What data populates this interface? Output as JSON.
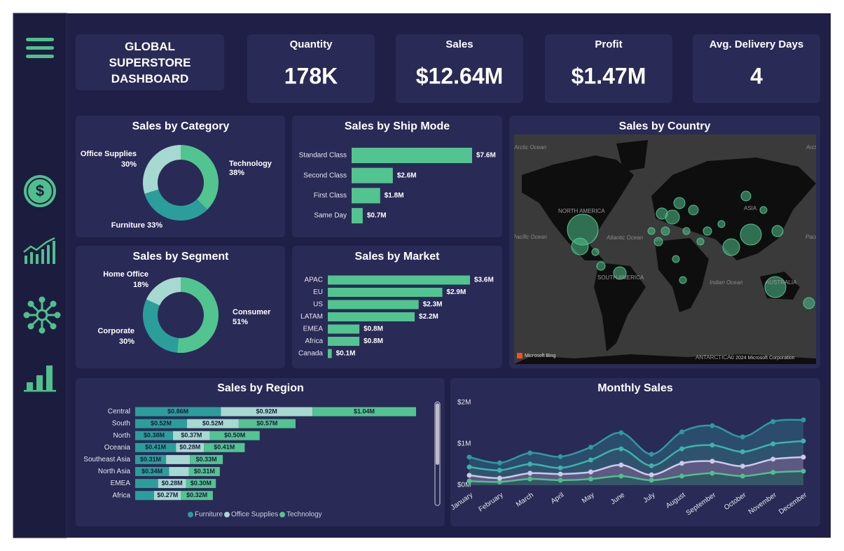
{
  "header": {
    "title": "GLOBAL SUPERSTORE DASHBOARD"
  },
  "kpis": [
    {
      "label": "Quantity",
      "value": "178K"
    },
    {
      "label": "Sales",
      "value": "$12.64M"
    },
    {
      "label": "Profit",
      "value": "$1.47M"
    },
    {
      "label": "Avg. Delivery Days",
      "value": 4
    }
  ],
  "chart_data": [
    {
      "type": "donut",
      "title": "Sales by Category",
      "categories": [
        "Technology",
        "Furniture",
        "Office Supplies"
      ],
      "values": [
        38,
        33,
        30
      ],
      "value_labels": [
        "38%",
        "33%",
        "30%"
      ],
      "colors": [
        "#52c48f",
        "#2b9e9b",
        "#a6d9cf"
      ]
    },
    {
      "type": "hbar",
      "title": "Sales by Ship Mode",
      "categories": [
        "Standard Class",
        "Second Class",
        "First Class",
        "Same Day"
      ],
      "values": [
        7.6,
        2.6,
        1.8,
        0.7
      ],
      "value_labels": [
        "$7.6M",
        "$2.6M",
        "$1.8M",
        "$0.7M"
      ],
      "color": "#52c48f"
    },
    {
      "type": "donut",
      "title": "Sales by Segment",
      "categories": [
        "Consumer",
        "Corporate",
        "Home Office"
      ],
      "values": [
        51,
        30,
        18
      ],
      "value_labels": [
        "51%",
        "30%",
        "18%"
      ],
      "colors": [
        "#52c48f",
        "#2b9e9b",
        "#a6d9cf"
      ]
    },
    {
      "type": "hbar",
      "title": "Sales by Market",
      "categories": [
        "APAC",
        "EU",
        "US",
        "LATAM",
        "EMEA",
        "Africa",
        "Canada"
      ],
      "values": [
        3.6,
        2.9,
        2.3,
        2.2,
        0.8,
        0.8,
        0.1
      ],
      "value_labels": [
        "$3.6M",
        "$2.9M",
        "$2.3M",
        "$2.2M",
        "$0.8M",
        "$0.8M",
        "$0.1M"
      ],
      "color": "#52c48f"
    },
    {
      "type": "map",
      "title": "Sales by Country",
      "labels": [
        "Arctic Ocean",
        "Arctic Ocean",
        "Pacific Ocean",
        "Pacific Ocean",
        "NORTH AMERICA",
        "Atlantic Ocean",
        "ASIA",
        "SOUTH AMERICA",
        "Indian Ocean",
        "AUSTRALIA",
        "ANTARCTICA"
      ],
      "attribution": [
        "Microsoft Bing",
        "© 2024 Microsoft Corporation"
      ]
    },
    {
      "type": "stacked-hbar",
      "title": "Sales by Region",
      "categories": [
        "Central",
        "South",
        "North",
        "Oceania",
        "Southeast Asia",
        "North Asia",
        "EMEA",
        "Africa"
      ],
      "series": [
        {
          "name": "Furniture",
          "color": "#2b9e9b",
          "values": [
            0.86,
            0.52,
            0.38,
            0.41,
            0.31,
            0.34,
            0.23,
            0.19
          ],
          "value_labels": [
            "$0.86M",
            "$0.52M",
            "$0.38M",
            "$0.41M",
            "$0.31M",
            "$0.34M",
            null,
            null
          ]
        },
        {
          "name": "Office Supplies",
          "color": "#a6d9cf",
          "values": [
            0.92,
            0.52,
            0.37,
            0.28,
            0.24,
            0.2,
            0.28,
            0.27
          ],
          "value_labels": [
            "$0.92M",
            "$0.52M",
            "$0.37M",
            "$0.28M",
            null,
            null,
            "$0.28M",
            "$0.27M"
          ]
        },
        {
          "name": "Technology",
          "color": "#52c48f",
          "values": [
            1.04,
            0.57,
            0.5,
            0.41,
            0.33,
            0.31,
            0.3,
            0.32
          ],
          "value_labels": [
            "$1.04M",
            "$0.57M",
            "$0.50M",
            "$0.41M",
            "$0.33M",
            "$0.31M",
            "$0.30M",
            "$0.32M"
          ]
        }
      ]
    },
    {
      "type": "stacked-area",
      "title": "Monthly Sales",
      "categories": [
        "January",
        "February",
        "March",
        "April",
        "May",
        "June",
        "July",
        "August",
        "September",
        "October",
        "November",
        "December"
      ],
      "ylim": [
        0,
        2
      ],
      "yticks": [
        {
          "value": 0,
          "label": "$0M"
        },
        {
          "value": 1,
          "label": "$1M"
        },
        {
          "value": 2,
          "label": "$2M"
        }
      ],
      "series": [
        {
          "color": "#4fc08d",
          "values": [
            0.1,
            0.08,
            0.15,
            0.12,
            0.15,
            0.22,
            0.12,
            0.22,
            0.29,
            0.22,
            0.31,
            0.34
          ]
        },
        {
          "color": "#cfc8ea",
          "values": [
            0.14,
            0.09,
            0.14,
            0.15,
            0.17,
            0.27,
            0.13,
            0.31,
            0.29,
            0.24,
            0.32,
            0.34
          ]
        },
        {
          "color": "#3cb3aa",
          "values": [
            0.2,
            0.19,
            0.22,
            0.15,
            0.29,
            0.39,
            0.22,
            0.35,
            0.39,
            0.35,
            0.37,
            0.39
          ]
        },
        {
          "color": "#2f9aa0",
          "values": [
            0.24,
            0.18,
            0.27,
            0.27,
            0.31,
            0.39,
            0.28,
            0.41,
            0.47,
            0.36,
            0.54,
            0.51
          ]
        }
      ]
    }
  ]
}
